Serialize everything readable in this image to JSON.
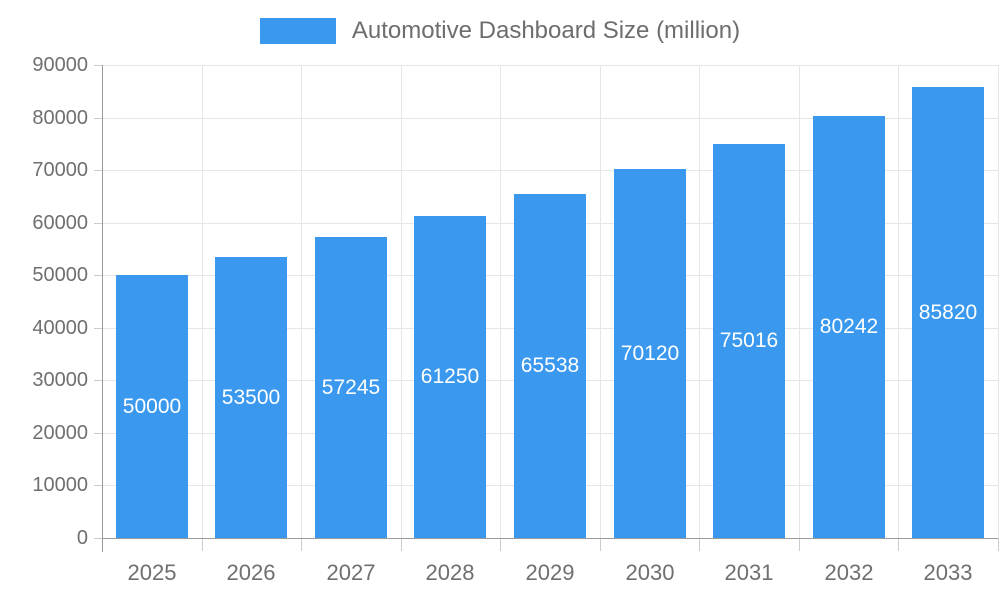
{
  "chart_data": {
    "type": "bar",
    "title": "Automotive Dashboard Size (million)",
    "legend": [
      "Automotive Dashboard Size (million)"
    ],
    "legend_position": "top",
    "categories": [
      "2025",
      "2026",
      "2027",
      "2028",
      "2029",
      "2030",
      "2031",
      "2032",
      "2033"
    ],
    "series": [
      {
        "name": "Automotive Dashboard Size (million)",
        "values": [
          50000,
          53500,
          57245,
          61250,
          65538,
          70120,
          75016,
          80242,
          85820
        ]
      }
    ],
    "value_labels": [
      "50000",
      "53500",
      "57245",
      "61250",
      "65538",
      "70120",
      "75016",
      "80242",
      "85820"
    ],
    "value_label_position": "inside-middle",
    "xlabel": "",
    "ylabel": "",
    "ylim": [
      0,
      90000
    ],
    "y_ticks": [
      0,
      10000,
      20000,
      30000,
      40000,
      50000,
      60000,
      70000,
      80000,
      90000
    ],
    "grid": "on"
  },
  "colors": {
    "bar": "#3A99EE",
    "axis_line": "#9A9A9A",
    "gridline": "#E6E6E6",
    "tick_mark": "#CCCCCC",
    "axis_text": "#6F6F6F",
    "legend_text": "#6D6D6D",
    "value_label_text": "#FFFFFF",
    "background": "#FFFFFF"
  }
}
